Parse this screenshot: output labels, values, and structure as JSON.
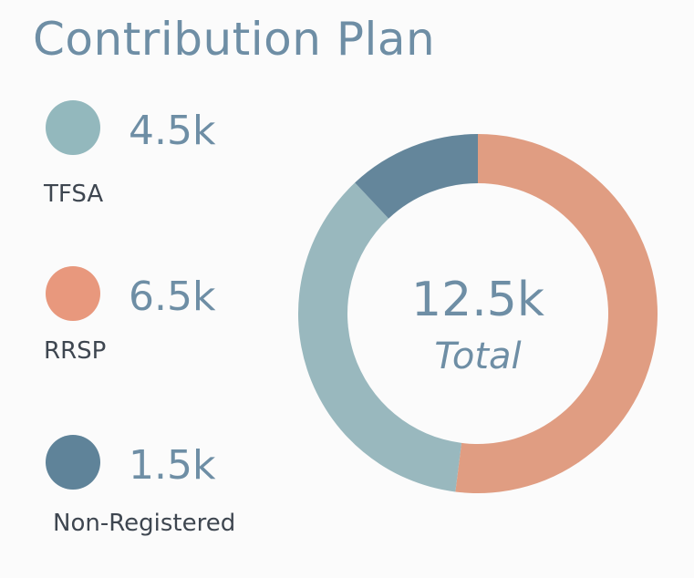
{
  "title": "Contribution Plan",
  "colors": {
    "TFSA": "#99b8be",
    "RRSP": "#e09d82",
    "Non-Registered": "#64869b",
    "text_value": "#6e8ea5",
    "text_label": "#3e4650"
  },
  "legend": [
    {
      "value": "4.5k",
      "label": "TFSA"
    },
    {
      "value": "6.5k",
      "label": "RRSP"
    },
    {
      "value": "1.5k",
      "label": "Non-Registered"
    }
  ],
  "center": {
    "value": "12.5k",
    "caption": "Total"
  },
  "chart_data": {
    "type": "pie",
    "title": "Contribution Plan",
    "categories": [
      "RRSP",
      "TFSA",
      "Non-Registered"
    ],
    "values": [
      6.5,
      4.5,
      1.5
    ],
    "unit": "k",
    "total": 12.5
  }
}
